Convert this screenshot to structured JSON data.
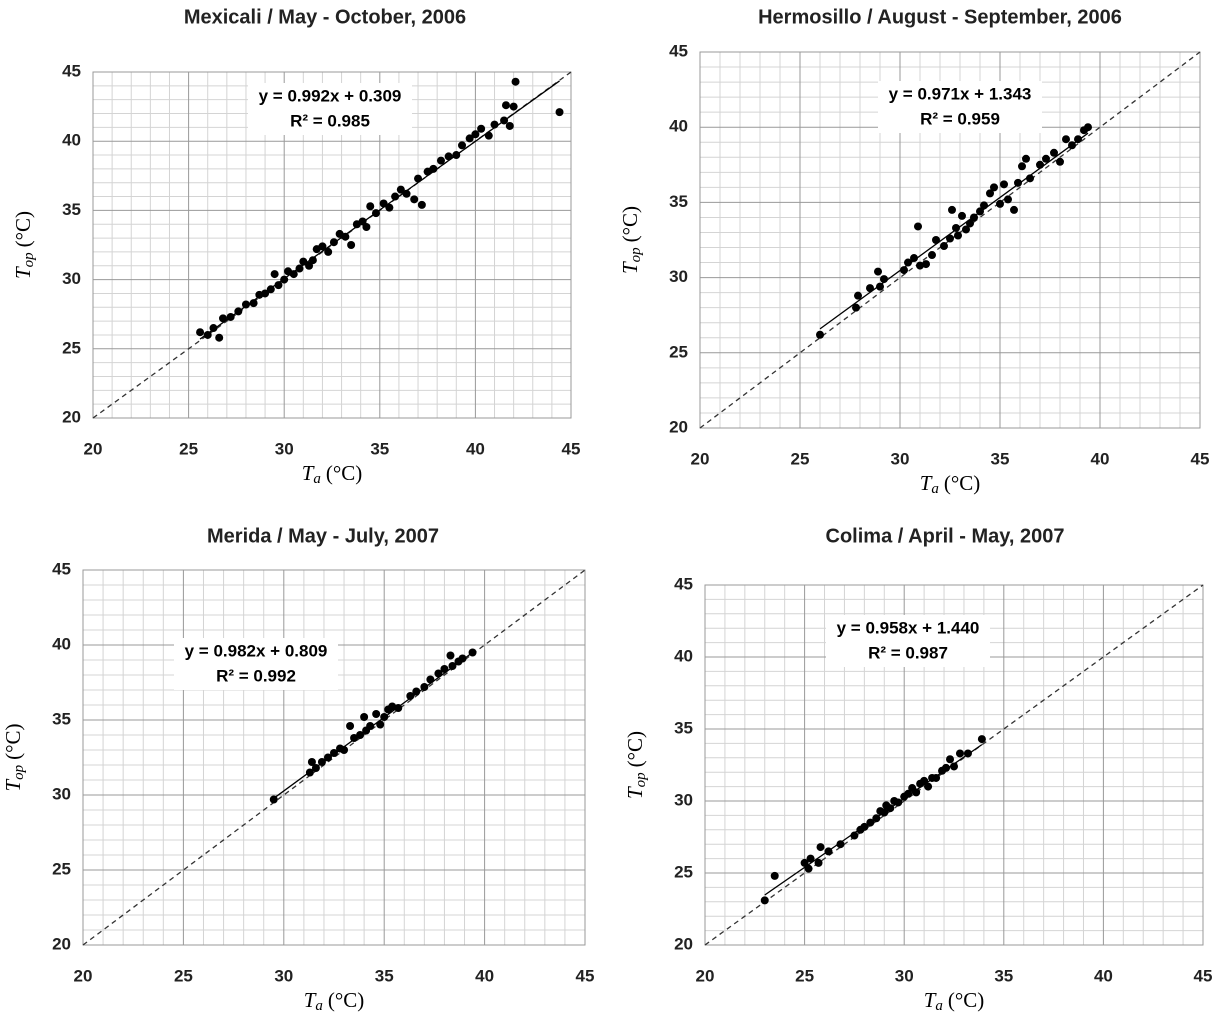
{
  "chart_data": [
    {
      "type": "scatter",
      "title": "Mexicali / May - October, 2006",
      "xlabel": {
        "symbol": "T",
        "subscript": "a",
        "unit": "(°C)"
      },
      "ylabel": {
        "symbol": "T",
        "subscript": "op",
        "unit": "(°C)"
      },
      "xlim": [
        20,
        45
      ],
      "ylim": [
        20,
        45
      ],
      "xticks": [
        20,
        25,
        30,
        35,
        40,
        45
      ],
      "yticks": [
        20,
        25,
        30,
        35,
        40,
        45
      ],
      "grid": true,
      "minor_divisions": 5,
      "identity_line": true,
      "color": "#000000",
      "trendline": {
        "slope": 0.992,
        "intercept": 0.309,
        "label": "y = 0.992x + 0.309"
      },
      "r2": {
        "value": 0.985,
        "label": "R² = 0.985"
      },
      "x": [
        25.6,
        26,
        26.3,
        26.6,
        26.8,
        27.2,
        27.6,
        28,
        28.4,
        28.7,
        29,
        29.3,
        29.5,
        29.7,
        30,
        30.2,
        30.5,
        30.8,
        31,
        31.3,
        31.5,
        31.7,
        32,
        32.3,
        32.6,
        32.9,
        33.2,
        33.5,
        33.8,
        34.1,
        34.3,
        34.5,
        34.8,
        35.2,
        35.5,
        35.8,
        36.1,
        36.4,
        36.8,
        37,
        37.2,
        37.5,
        37.8,
        38.2,
        38.6,
        39,
        39.3,
        39.7,
        40,
        40.3,
        40.7,
        41,
        41.5,
        41.6,
        41.8,
        42,
        42.1,
        44.4
      ],
      "values": [
        26.2,
        26,
        26.5,
        25.8,
        27.2,
        27.3,
        27.7,
        28.2,
        28.3,
        28.9,
        29,
        29.3,
        30.4,
        29.6,
        30,
        30.6,
        30.4,
        30.8,
        31.3,
        31,
        31.4,
        32.2,
        32.4,
        32,
        32.7,
        33.3,
        33.1,
        32.5,
        34,
        34.2,
        33.8,
        35.3,
        34.8,
        35.5,
        35.2,
        36,
        36.5,
        36.2,
        35.8,
        37.3,
        35.4,
        37.8,
        38,
        38.6,
        38.9,
        39,
        39.7,
        40.2,
        40.5,
        40.9,
        40.4,
        41.2,
        41.5,
        42.6,
        41.1,
        42.5,
        44.3,
        42.1
      ]
    },
    {
      "type": "scatter",
      "title": "Hermosillo / August - September, 2006",
      "xlabel": {
        "symbol": "T",
        "subscript": "a",
        "unit": "(°C)"
      },
      "ylabel": {
        "symbol": "T",
        "subscript": "op",
        "unit": "(°C)"
      },
      "xlim": [
        20,
        45
      ],
      "ylim": [
        20,
        45
      ],
      "xticks": [
        20,
        25,
        30,
        35,
        40,
        45
      ],
      "yticks": [
        20,
        25,
        30,
        35,
        40,
        45
      ],
      "grid": true,
      "minor_divisions": 5,
      "identity_line": true,
      "color": "#000000",
      "trendline": {
        "slope": 0.971,
        "intercept": 1.343,
        "label": "y = 0.971x + 1.343"
      },
      "r2": {
        "value": 0.959,
        "label": "R² = 0.959"
      },
      "x": [
        26,
        27.8,
        27.9,
        28.5,
        28.9,
        29,
        29.2,
        30.2,
        30.4,
        30.7,
        30.9,
        31,
        31.3,
        31.6,
        31.8,
        32.2,
        32.5,
        32.6,
        32.8,
        32.9,
        33.1,
        33.3,
        33.5,
        33.7,
        34,
        34.2,
        34.5,
        34.7,
        35,
        35.2,
        35.4,
        35.7,
        35.9,
        36.1,
        36.3,
        36.5,
        37,
        37.3,
        37.7,
        38,
        38.3,
        38.6,
        38.9,
        39.2,
        39.4
      ],
      "values": [
        26.2,
        28,
        28.8,
        29.3,
        30.4,
        29.4,
        29.9,
        30.5,
        31,
        31.3,
        33.4,
        30.8,
        30.9,
        31.5,
        32.5,
        32.1,
        32.6,
        34.5,
        33.3,
        32.8,
        34.1,
        33.2,
        33.6,
        34,
        34.4,
        34.8,
        35.6,
        36,
        34.9,
        36.2,
        35.2,
        34.5,
        36.3,
        37.4,
        37.9,
        36.6,
        37.5,
        37.9,
        38.3,
        37.7,
        39.2,
        38.8,
        39.2,
        39.8,
        40
      ]
    },
    {
      "type": "scatter",
      "title": "Merida / May - July, 2007",
      "xlabel": {
        "symbol": "T",
        "subscript": "a",
        "unit": "(°C)"
      },
      "ylabel": {
        "symbol": "T",
        "subscript": "op",
        "unit": "(°C)"
      },
      "xlim": [
        20,
        45
      ],
      "ylim": [
        20,
        45
      ],
      "xticks": [
        20,
        25,
        30,
        35,
        40,
        45
      ],
      "yticks": [
        20,
        25,
        30,
        35,
        40,
        45
      ],
      "grid": true,
      "minor_divisions": 5,
      "identity_line": true,
      "color": "#000000",
      "trendline": {
        "slope": 0.982,
        "intercept": 0.809,
        "label": "y = 0.982x + 0.809"
      },
      "r2": {
        "value": 0.992,
        "label": "R² = 0.992"
      },
      "x": [
        29.5,
        31.3,
        31.4,
        31.6,
        31.9,
        32.2,
        32.5,
        32.8,
        33,
        33.3,
        33.5,
        33.8,
        34,
        34.1,
        34.3,
        34.6,
        34.8,
        35,
        35.2,
        35.4,
        35.7,
        36.3,
        36.6,
        37,
        37.3,
        37.7,
        38,
        38.3,
        38.4,
        38.7,
        38.9,
        39.4
      ],
      "values": [
        29.7,
        31.5,
        32.2,
        31.8,
        32.2,
        32.5,
        32.8,
        33.1,
        33,
        34.6,
        33.8,
        34,
        35.2,
        34.3,
        34.6,
        35.4,
        34.7,
        35.2,
        35.7,
        35.9,
        35.8,
        36.6,
        36.9,
        37.2,
        37.7,
        38.1,
        38.4,
        39.3,
        38.6,
        38.9,
        39.1,
        39.5
      ]
    },
    {
      "type": "scatter",
      "title": "Colima / April - May, 2007",
      "xlabel": {
        "symbol": "T",
        "subscript": "a",
        "unit": "(°C)"
      },
      "ylabel": {
        "symbol": "T",
        "subscript": "op",
        "unit": "(°C)"
      },
      "xlim": [
        20,
        45
      ],
      "ylim": [
        20,
        45
      ],
      "xticks": [
        20,
        25,
        30,
        35,
        40,
        45
      ],
      "yticks": [
        20,
        25,
        30,
        35,
        40,
        45
      ],
      "grid": true,
      "minor_divisions": 5,
      "identity_line": true,
      "color": "#000000",
      "trendline": {
        "slope": 0.958,
        "intercept": 1.44,
        "label": "y = 0.958x + 1.440"
      },
      "r2": {
        "value": 0.987,
        "label": "R² = 0.987"
      },
      "x": [
        23,
        23.5,
        25,
        25.2,
        25.3,
        25.7,
        25.8,
        26.2,
        26.8,
        27.5,
        27.8,
        28,
        28.3,
        28.6,
        28.8,
        29,
        29.1,
        29.3,
        29.5,
        29.7,
        30,
        30.2,
        30.4,
        30.6,
        30.8,
        31,
        31.2,
        31.4,
        31.6,
        31.9,
        32.1,
        32.3,
        32.5,
        32.8,
        33.2,
        33.9
      ],
      "values": [
        23.1,
        24.8,
        25.7,
        25.3,
        26,
        25.7,
        26.8,
        26.5,
        27,
        27.6,
        28,
        28.2,
        28.5,
        28.8,
        29.3,
        29.2,
        29.7,
        29.5,
        30,
        29.9,
        30.3,
        30.5,
        30.9,
        30.6,
        31.2,
        31.4,
        31,
        31.6,
        31.6,
        32.1,
        32.3,
        32.9,
        32.4,
        33.3,
        33.3,
        34.3
      ]
    }
  ]
}
